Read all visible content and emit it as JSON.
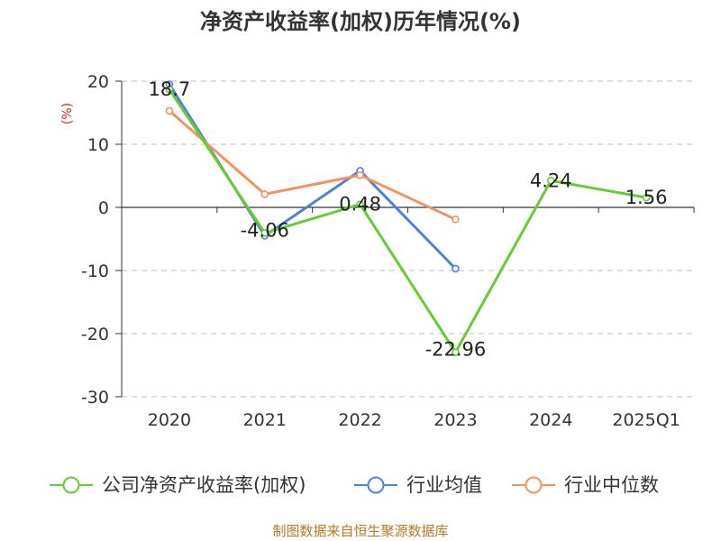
{
  "title": "净资产收益率(加权)历年情况(%)",
  "source": "制图数据来自恒生聚源数据库",
  "chart_data": {
    "type": "line",
    "title": "净资产收益率(加权)历年情况(%)",
    "ylabel": "(%)",
    "categories": [
      "2020",
      "2021",
      "2022",
      "2023",
      "2024",
      "2025Q1"
    ],
    "ylim": [
      -30,
      20
    ],
    "yticks": [
      20,
      10,
      0,
      -10,
      -20,
      -30
    ],
    "grid": true,
    "legend_position": "bottom",
    "series": [
      {
        "name": "公司净资产收益率(加权)",
        "color": "#66cc33",
        "values": [
          18.7,
          -4.06,
          0.48,
          -22.96,
          4.24,
          1.56
        ],
        "labels": [
          "18.7",
          "-4.06",
          "0.48",
          "-22.96",
          "4.24",
          "1.56"
        ]
      },
      {
        "name": "行业均值",
        "color": "#4f81e0",
        "values": [
          19.5,
          -4.5,
          5.8,
          -9.7,
          null,
          null
        ]
      },
      {
        "name": "行业中位数",
        "color": "#f5915c",
        "values": [
          15.3,
          2.1,
          5.1,
          -1.9,
          null,
          null
        ]
      }
    ]
  }
}
